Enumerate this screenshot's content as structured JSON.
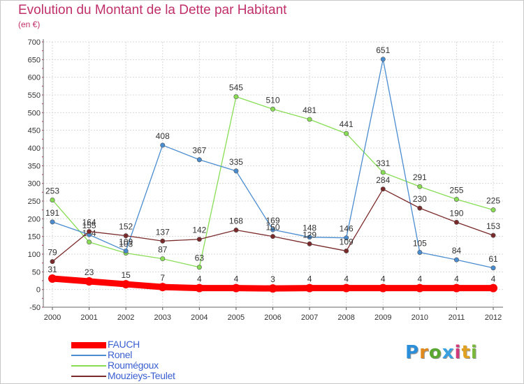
{
  "title": "Evolution du Montant de la Dette par Habitant",
  "subtitle": "(en €)",
  "logo": {
    "text": "Proxiti",
    "letters": [
      "P",
      "r",
      "o",
      "x",
      "i",
      "t",
      "i"
    ],
    "colors": [
      "#2a8fd8",
      "#e08a1e",
      "#5aa832",
      "#3aa0e0",
      "#d03a7a",
      "#e0a020",
      "#7ab83a"
    ]
  },
  "chart_data": {
    "type": "line",
    "title": "Evolution du Montant de la Dette par Habitant",
    "subtitle": "(en €)",
    "x": [
      "2000",
      "2001",
      "2002",
      "2003",
      "2004",
      "2005",
      "2006",
      "2007",
      "2008",
      "2009",
      "2010",
      "2011",
      "2012"
    ],
    "ylim": [
      -50,
      700
    ],
    "yticks": [
      -50,
      0,
      50,
      100,
      150,
      200,
      250,
      300,
      350,
      400,
      450,
      500,
      550,
      600,
      650,
      700
    ],
    "grid": true,
    "legend_position": "bottom-left",
    "series": [
      {
        "name": "FAUCH",
        "color": "#ff0000",
        "thick": true,
        "values": [
          31,
          23,
          15,
          7,
          4,
          4,
          3,
          4,
          4,
          4,
          4,
          4,
          4
        ]
      },
      {
        "name": "Ronel",
        "color": "#4a8cd0",
        "values": [
          191,
          155,
          109,
          408,
          367,
          335,
          169,
          148,
          146,
          651,
          105,
          84,
          61
        ]
      },
      {
        "name": "Roumégoux",
        "color": "#88dd55",
        "values": [
          253,
          134,
          103,
          87,
          63,
          545,
          510,
          481,
          441,
          331,
          291,
          255,
          225
        ]
      },
      {
        "name": "Mouzieys-Teulet",
        "color": "#7a2a2a",
        "values": [
          79,
          164,
          152,
          137,
          142,
          168,
          150,
          129,
          109,
          284,
          230,
          190,
          153
        ]
      }
    ]
  }
}
